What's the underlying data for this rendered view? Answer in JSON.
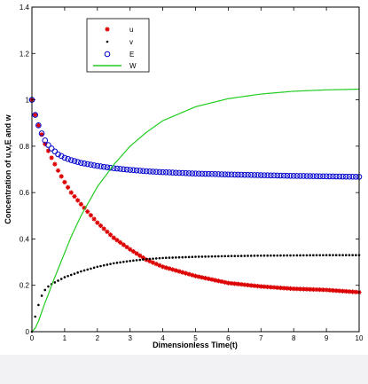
{
  "chart_data": {
    "type": "scatter",
    "title": "",
    "xlabel": "Dimensionless Time(t)",
    "ylabel": "Concentration of u,v,E and w",
    "xlim": [
      0,
      10
    ],
    "ylim": [
      0,
      1.4
    ],
    "x_ticks": [
      "0",
      "1",
      "2",
      "3",
      "4",
      "5",
      "6",
      "7",
      "8",
      "9",
      "10"
    ],
    "y_ticks": [
      "0",
      "0.2",
      "0.4",
      "0.6",
      "0.8",
      "1",
      "1.2",
      "1.4"
    ],
    "grid": false,
    "legend_position": "top-left",
    "x": [
      0,
      0.1,
      0.2,
      0.3,
      0.4,
      0.5,
      0.6,
      0.8,
      1.0,
      1.2,
      1.5,
      2.0,
      2.5,
      3.0,
      3.5,
      4.0,
      5.0,
      6.0,
      7.0,
      8.0,
      9.0,
      10.0
    ],
    "series": [
      {
        "name": "u",
        "marker": "star",
        "color": "#dd0000",
        "values": [
          1.0,
          0.935,
          0.89,
          0.85,
          0.81,
          0.78,
          0.75,
          0.695,
          0.645,
          0.6,
          0.55,
          0.47,
          0.405,
          0.355,
          0.31,
          0.28,
          0.24,
          0.21,
          0.195,
          0.185,
          0.18,
          0.17
        ]
      },
      {
        "name": "v",
        "marker": "dot",
        "color": "#000000",
        "values": [
          0.0,
          0.065,
          0.115,
          0.155,
          0.18,
          0.195,
          0.205,
          0.22,
          0.235,
          0.245,
          0.26,
          0.28,
          0.295,
          0.305,
          0.313,
          0.318,
          0.323,
          0.326,
          0.328,
          0.329,
          0.33,
          0.33
        ]
      },
      {
        "name": "E",
        "marker": "circle",
        "color": "#0000cc",
        "values": [
          1.0,
          0.935,
          0.89,
          0.855,
          0.825,
          0.805,
          0.79,
          0.765,
          0.75,
          0.74,
          0.728,
          0.715,
          0.705,
          0.698,
          0.692,
          0.688,
          0.682,
          0.678,
          0.675,
          0.672,
          0.67,
          0.668
        ]
      },
      {
        "name": "W",
        "marker": "line",
        "color": "#22cc22",
        "values": [
          0.0,
          0.015,
          0.045,
          0.085,
          0.125,
          0.16,
          0.2,
          0.27,
          0.34,
          0.41,
          0.5,
          0.625,
          0.72,
          0.8,
          0.86,
          0.91,
          0.97,
          1.005,
          1.025,
          1.037,
          1.043,
          1.046
        ]
      }
    ]
  }
}
